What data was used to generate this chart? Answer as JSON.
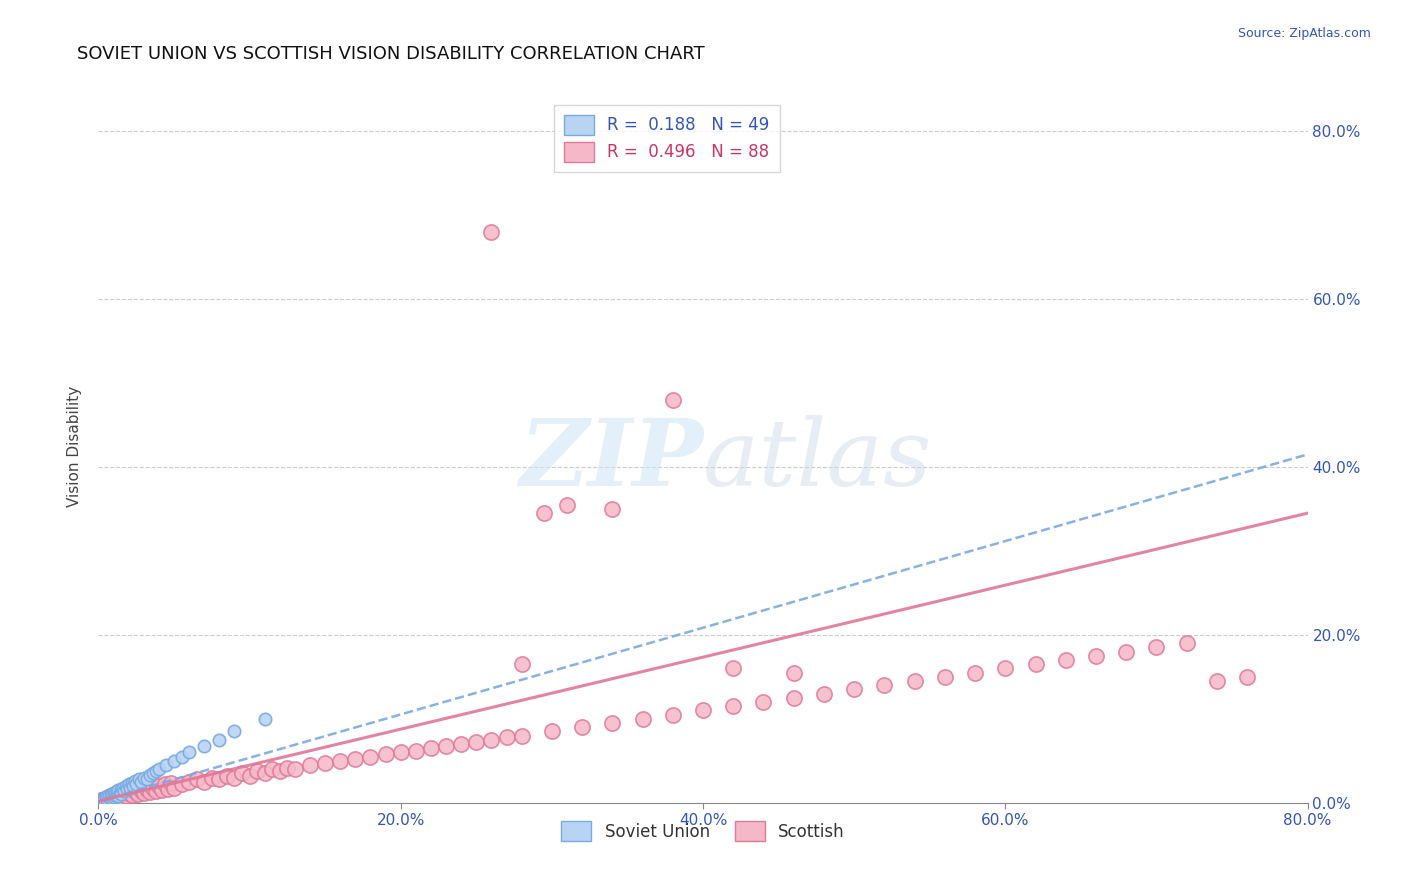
{
  "title": "SOVIET UNION VS SCOTTISH VISION DISABILITY CORRELATION CHART",
  "source": "Source: ZipAtlas.com",
  "ylabel": "Vision Disability",
  "xlim": [
    0.0,
    0.8
  ],
  "ylim": [
    0.0,
    0.85
  ],
  "ytick_labels": [
    "0.0%",
    "20.0%",
    "40.0%",
    "60.0%",
    "80.0%"
  ],
  "ytick_values": [
    0.0,
    0.2,
    0.4,
    0.6,
    0.8
  ],
  "xtick_labels": [
    "0.0%",
    "20.0%",
    "40.0%",
    "60.0%",
    "80.0%"
  ],
  "xtick_values": [
    0.0,
    0.2,
    0.4,
    0.6,
    0.8
  ],
  "soviet_R": 0.188,
  "soviet_N": 49,
  "scottish_R": 0.496,
  "scottish_N": 88,
  "soviet_marker_face": "#b8d4f5",
  "soviet_marker_edge": "#7aaae0",
  "scottish_marker_face": "#f5b8c8",
  "scottish_marker_edge": "#e07898",
  "soviet_line_color": "#7aaae0",
  "scottish_line_color": "#e07898",
  "title_fontsize": 13,
  "axis_label_fontsize": 11,
  "tick_fontsize": 11,
  "legend_fontsize": 12,
  "watermark_text": "ZIPatlas",
  "background_color": "#ffffff",
  "grid_color": "#cccccc",
  "soviet_line_start_y": 0.002,
  "soviet_line_end_y": 0.415,
  "scottish_line_start_y": 0.002,
  "scottish_line_end_y": 0.345,
  "soviet_x": [
    0.002,
    0.003,
    0.004,
    0.005,
    0.006,
    0.006,
    0.007,
    0.007,
    0.008,
    0.008,
    0.009,
    0.009,
    0.01,
    0.01,
    0.011,
    0.011,
    0.012,
    0.012,
    0.013,
    0.013,
    0.014,
    0.015,
    0.015,
    0.016,
    0.017,
    0.018,
    0.019,
    0.02,
    0.021,
    0.022,
    0.023,
    0.024,
    0.025,
    0.027,
    0.028,
    0.03,
    0.032,
    0.034,
    0.036,
    0.038,
    0.04,
    0.045,
    0.05,
    0.055,
    0.06,
    0.07,
    0.08,
    0.09,
    0.11
  ],
  "soviet_y": [
    0.003,
    0.005,
    0.004,
    0.006,
    0.005,
    0.008,
    0.007,
    0.009,
    0.006,
    0.01,
    0.008,
    0.011,
    0.007,
    0.012,
    0.009,
    0.013,
    0.01,
    0.014,
    0.008,
    0.015,
    0.012,
    0.016,
    0.011,
    0.018,
    0.014,
    0.02,
    0.016,
    0.022,
    0.018,
    0.024,
    0.02,
    0.026,
    0.022,
    0.028,
    0.025,
    0.03,
    0.028,
    0.033,
    0.035,
    0.038,
    0.04,
    0.045,
    0.05,
    0.055,
    0.06,
    0.068,
    0.075,
    0.085,
    0.1
  ],
  "scottish_x": [
    0.002,
    0.004,
    0.006,
    0.008,
    0.01,
    0.012,
    0.014,
    0.016,
    0.018,
    0.02,
    0.022,
    0.024,
    0.026,
    0.028,
    0.03,
    0.032,
    0.034,
    0.036,
    0.038,
    0.04,
    0.042,
    0.044,
    0.046,
    0.048,
    0.05,
    0.055,
    0.06,
    0.065,
    0.07,
    0.075,
    0.08,
    0.085,
    0.09,
    0.095,
    0.1,
    0.105,
    0.11,
    0.115,
    0.12,
    0.125,
    0.13,
    0.14,
    0.15,
    0.16,
    0.17,
    0.18,
    0.19,
    0.2,
    0.21,
    0.22,
    0.23,
    0.24,
    0.25,
    0.26,
    0.27,
    0.28,
    0.3,
    0.32,
    0.34,
    0.36,
    0.38,
    0.4,
    0.42,
    0.44,
    0.46,
    0.48,
    0.5,
    0.52,
    0.54,
    0.56,
    0.58,
    0.6,
    0.62,
    0.64,
    0.66,
    0.68,
    0.7,
    0.72,
    0.74,
    0.76,
    0.34,
    0.38,
    0.28,
    0.31,
    0.26,
    0.295,
    0.42,
    0.46
  ],
  "scottish_y": [
    0.003,
    0.005,
    0.004,
    0.007,
    0.006,
    0.008,
    0.007,
    0.01,
    0.008,
    0.012,
    0.009,
    0.014,
    0.01,
    0.015,
    0.012,
    0.016,
    0.013,
    0.018,
    0.014,
    0.02,
    0.015,
    0.022,
    0.016,
    0.024,
    0.018,
    0.022,
    0.025,
    0.028,
    0.025,
    0.03,
    0.028,
    0.032,
    0.03,
    0.035,
    0.032,
    0.038,
    0.035,
    0.04,
    0.038,
    0.042,
    0.04,
    0.045,
    0.048,
    0.05,
    0.052,
    0.055,
    0.058,
    0.06,
    0.062,
    0.065,
    0.068,
    0.07,
    0.072,
    0.075,
    0.078,
    0.08,
    0.085,
    0.09,
    0.095,
    0.1,
    0.105,
    0.11,
    0.115,
    0.12,
    0.125,
    0.13,
    0.135,
    0.14,
    0.145,
    0.15,
    0.155,
    0.16,
    0.165,
    0.17,
    0.175,
    0.18,
    0.185,
    0.19,
    0.145,
    0.15,
    0.35,
    0.48,
    0.165,
    0.355,
    0.68,
    0.345,
    0.16,
    0.155
  ]
}
